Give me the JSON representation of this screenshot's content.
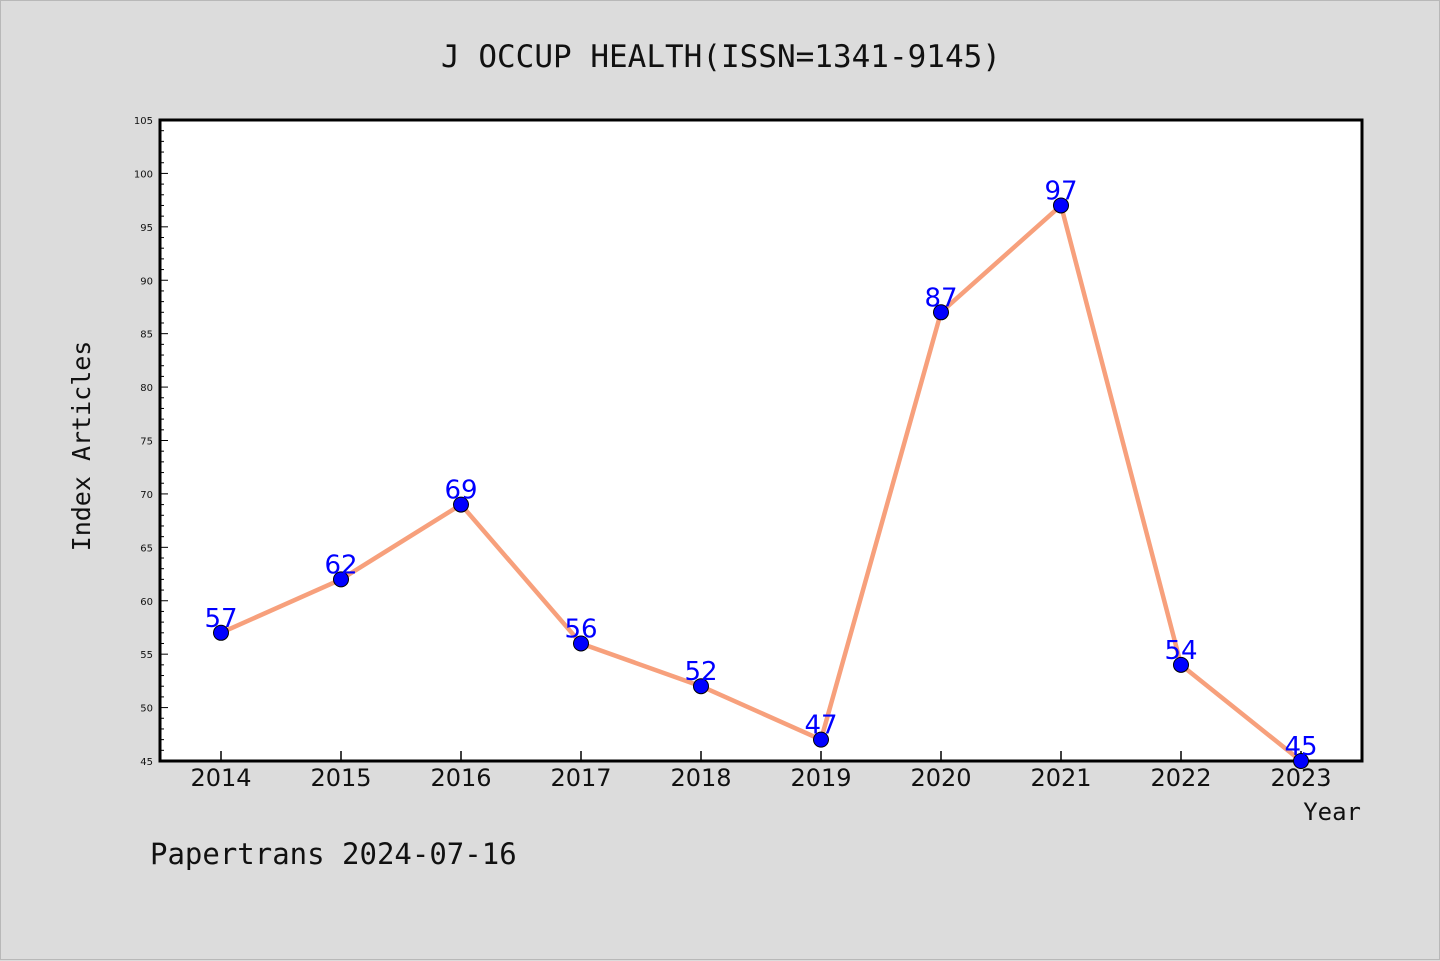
{
  "footer": "Papertrans 2024-07-16",
  "colors": {
    "background": "#dcdcdc",
    "plot_background": "#ffffff",
    "line": "#f7a07c",
    "marker": "#0000ff",
    "data_label": "#0000ff"
  },
  "chart_data": {
    "type": "line",
    "title": "J OCCUP HEALTH(ISSN=1341-9145)",
    "xlabel": "Year",
    "ylabel": "Index Articles",
    "categories": [
      "2014",
      "2015",
      "2016",
      "2017",
      "2018",
      "2019",
      "2020",
      "2021",
      "2022",
      "2023"
    ],
    "series": [
      {
        "values": [
          57,
          62,
          69,
          56,
          52,
          47,
          87,
          97,
          54,
          45
        ]
      }
    ],
    "data_labels": [
      "57",
      "62",
      "69",
      "56",
      "52",
      "47",
      "87",
      "97",
      "54",
      "45"
    ],
    "ylim": [
      45,
      105
    ],
    "yticks": [
      45,
      50,
      55,
      60,
      65,
      70,
      75,
      80,
      85,
      90,
      95,
      100,
      105
    ],
    "ytick_labels": [
      "45",
      "50",
      "55",
      "60",
      "65",
      "70",
      "75",
      "80",
      "85",
      "90",
      "95",
      "100",
      "105"
    ],
    "grid": false,
    "legend": "none"
  }
}
